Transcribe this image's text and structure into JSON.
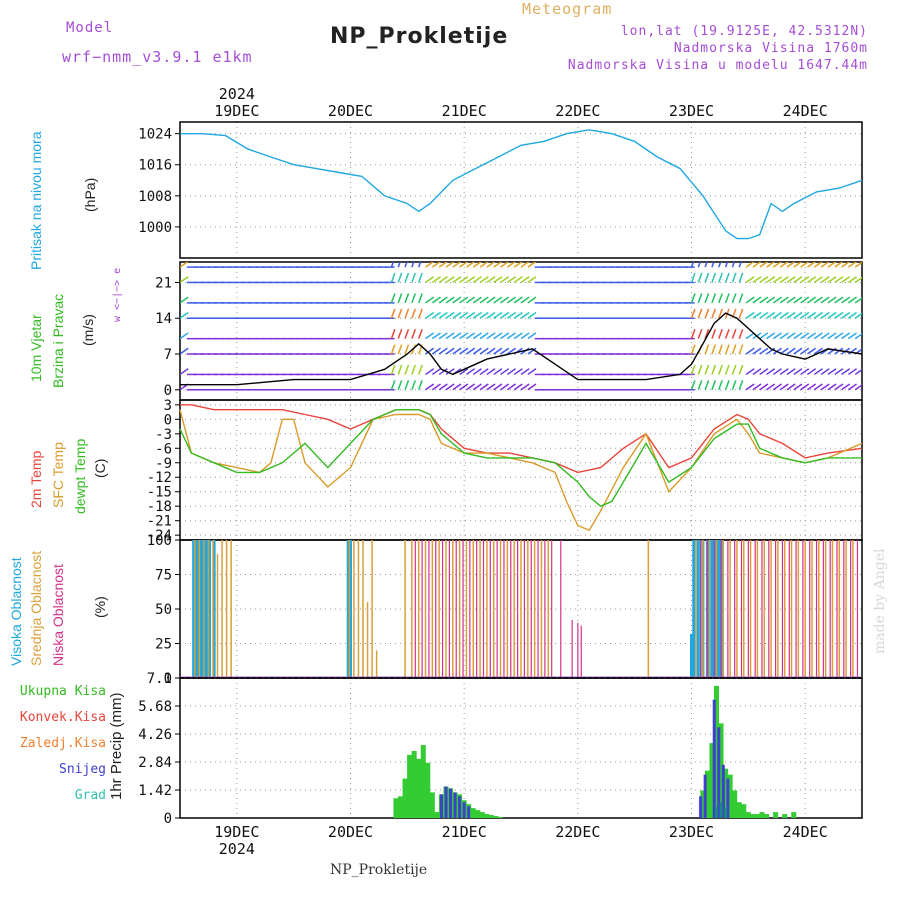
{
  "header": {
    "model_label": "Model",
    "model_name": "wrf−nmm_v3.9.1 e1km",
    "app_title": "Meteogram",
    "station_title": "NP_Prokletije",
    "coords": "lon,lat (19.9125E, 42.5312N)",
    "altitude": "Nadmorska Visina 1760m",
    "model_altitude": "Nadmorska Visina u modelu 1647.44m"
  },
  "footer": {
    "station": "NP_Prokletije",
    "watermark": "made by Angel"
  },
  "time_axis": {
    "year": "2024",
    "days": [
      "19DEC",
      "20DEC",
      "21DEC",
      "22DEC",
      "23DEC",
      "24DEC"
    ]
  },
  "panels": {
    "pressure": {
      "label": "Pritisak na nivou mora",
      "unit": "(hPa)"
    },
    "wind": {
      "label1": "10m Vjetar",
      "label2": "Brzina i Pravac",
      "unit": "(m/s)",
      "compass": "w <−|−> e"
    },
    "temp": {
      "label1": "2m Temp",
      "label2": "SFC Temp",
      "label3": "dewpt Temp",
      "unit": "(C)"
    },
    "cloud": {
      "label1": "Visoka Oblacnost",
      "label2": "Srednja Oblacnost",
      "label3": "Niska Oblacnost",
      "unit": "(%)"
    },
    "precip": {
      "unit": "1hr Precip (mm)",
      "legend": [
        "Ukupna Kisa",
        "Konvek.Kisa",
        "Zaledj.Kisa",
        "Snijeg",
        "Grad"
      ]
    }
  },
  "colors": {
    "pressure": "#1ea7e1",
    "temp2m": "#e8443a",
    "sfc": "#d99b2a",
    "dewpt": "#33bb22",
    "high_cloud": "#1ea7e1",
    "mid_cloud": "#d9a03a",
    "low_cloud": "#d6308a",
    "total_rain": "#33cc33",
    "conv_rain": "#e8443a",
    "freezing": "#f08030",
    "snow": "#4040d0",
    "hail": "#30c0b0",
    "label_purple": "#a64dd6"
  },
  "chart_data": [
    {
      "type": "line",
      "title": "Pritisak na nivou mora",
      "ylabel": "(hPa)",
      "ylim": [
        992,
        1027
      ],
      "yticks": [
        "1024",
        "1016",
        "1008",
        "1000"
      ],
      "x_range_days": [
        18.5,
        24.5
      ],
      "series": [
        {
          "x": [
            18.5,
            18.7,
            18.9,
            19.1,
            19.3,
            19.5,
            19.7,
            19.9,
            20.1,
            20.3,
            20.5,
            20.6,
            20.7,
            20.9,
            21.1,
            21.3,
            21.5,
            21.7,
            21.9,
            22.1,
            22.3,
            22.5,
            22.7,
            22.9,
            23.1,
            23.3,
            23.4,
            23.5,
            23.6,
            23.7,
            23.8,
            23.9,
            24.1,
            24.3,
            24.5
          ],
          "y": [
            1024,
            1024,
            1023.5,
            1020,
            1018,
            1016,
            1015,
            1014,
            1013,
            1008,
            1006,
            1004,
            1006,
            1012,
            1015,
            1018,
            1021,
            1022,
            1024,
            1025,
            1024,
            1022,
            1018,
            1015,
            1008,
            999,
            997,
            997,
            998,
            1006,
            1004,
            1006,
            1009,
            1010,
            1012
          ]
        }
      ]
    },
    {
      "type": "line",
      "title": "10m Vjetar Brzina i Pravac",
      "ylabel": "(m/s)",
      "ylim": [
        -2,
        25
      ],
      "yticks": [
        "21",
        "14",
        "7",
        "0"
      ],
      "x_range_days": [
        18.5,
        24.5
      ],
      "series": [
        {
          "x": [
            18.5,
            19.0,
            19.5,
            20.0,
            20.3,
            20.5,
            20.6,
            20.7,
            20.8,
            20.9,
            21.0,
            21.2,
            21.4,
            21.6,
            21.8,
            22.0,
            22.3,
            22.6,
            22.9,
            23.0,
            23.1,
            23.2,
            23.3,
            23.4,
            23.5,
            23.6,
            23.7,
            23.8,
            24.0,
            24.2,
            24.5
          ],
          "y": [
            1,
            1,
            2,
            2,
            4,
            7,
            9,
            7,
            4,
            3,
            4,
            6,
            7,
            8,
            5,
            2,
            2,
            2,
            3,
            5,
            9,
            13,
            15,
            14,
            12,
            10,
            8,
            7,
            6,
            8,
            7
          ]
        }
      ]
    },
    {
      "type": "line",
      "title": "Temperature",
      "ylabel": "(C)",
      "ylim": [
        -25,
        4
      ],
      "yticks": [
        "3",
        "0",
        "-3",
        "-6",
        "-9",
        "-12",
        "-15",
        "-18",
        "-21",
        "-24"
      ],
      "x_range_days": [
        18.5,
        24.5
      ],
      "series": [
        {
          "name": "2m Temp",
          "x": [
            18.5,
            18.6,
            18.8,
            19.0,
            19.2,
            19.4,
            19.6,
            19.8,
            20.0,
            20.2,
            20.4,
            20.6,
            20.7,
            20.8,
            21.0,
            21.2,
            21.4,
            21.6,
            21.8,
            22.0,
            22.2,
            22.4,
            22.6,
            22.8,
            23.0,
            23.2,
            23.4,
            23.5,
            23.6,
            23.8,
            24.0,
            24.2,
            24.5
          ],
          "y": [
            3,
            3,
            2,
            2,
            2,
            2,
            1,
            0,
            -2,
            0,
            2,
            2,
            1,
            -2,
            -6,
            -7,
            -7,
            -8,
            -9,
            -11,
            -10,
            -6,
            -3,
            -10,
            -8,
            -2,
            1,
            0,
            -3,
            -5,
            -8,
            -7,
            -6
          ]
        },
        {
          "name": "SFC Temp",
          "x": [
            18.5,
            18.6,
            18.8,
            19.0,
            19.2,
            19.3,
            19.4,
            19.5,
            19.6,
            19.8,
            20.0,
            20.2,
            20.4,
            20.6,
            20.7,
            20.8,
            21.0,
            21.2,
            21.4,
            21.6,
            21.8,
            21.9,
            22.0,
            22.1,
            22.2,
            22.4,
            22.6,
            22.8,
            23.0,
            23.2,
            23.4,
            23.5,
            23.6,
            23.8,
            24.0,
            24.2,
            24.5
          ],
          "y": [
            2,
            -7,
            -9,
            -10,
            -11,
            -9,
            0,
            0,
            -9,
            -14,
            -10,
            0,
            1,
            1,
            0,
            -5,
            -7,
            -7,
            -8,
            -9,
            -11,
            -17,
            -22,
            -23,
            -19,
            -10,
            -3,
            -15,
            -10,
            -3,
            0,
            -3,
            -7,
            -8,
            -9,
            -8,
            -5
          ]
        },
        {
          "name": "dewpt Temp",
          "x": [
            18.5,
            18.6,
            18.8,
            19.0,
            19.2,
            19.4,
            19.6,
            19.8,
            20.0,
            20.2,
            20.4,
            20.6,
            20.7,
            20.8,
            21.0,
            21.2,
            21.4,
            21.6,
            21.8,
            22.0,
            22.1,
            22.2,
            22.3,
            22.4,
            22.6,
            22.8,
            23.0,
            23.2,
            23.4,
            23.5,
            23.6,
            23.8,
            24.0,
            24.2,
            24.5
          ],
          "y": [
            -2,
            -7,
            -9,
            -11,
            -11,
            -9,
            -5,
            -10,
            -5,
            0,
            2,
            2,
            1,
            -3,
            -7,
            -8,
            -8,
            -8,
            -9,
            -13,
            -16,
            -18,
            -17,
            -13,
            -5,
            -13,
            -10,
            -4,
            -1,
            -1,
            -6,
            -8,
            -9,
            -8,
            -8
          ]
        }
      ]
    },
    {
      "type": "bar",
      "title": "Oblacnost",
      "ylabel": "(%)",
      "ylim": [
        0,
        100
      ],
      "yticks": [
        "100",
        "75",
        "50",
        "25",
        "0"
      ],
      "x_range_days": [
        18.5,
        24.5
      ],
      "series": [
        {
          "name": "Visoka Oblacnost",
          "x": [
            18.62,
            18.64,
            18.66,
            18.68,
            18.7,
            18.72,
            18.74,
            18.76,
            18.8,
            19.98,
            20.0,
            23.0,
            23.02,
            23.06,
            23.1,
            23.14,
            23.18,
            23.2,
            23.22,
            23.24,
            23.26
          ],
          "values": [
            100,
            100,
            100,
            100,
            100,
            100,
            100,
            100,
            100,
            100,
            100,
            32,
            100,
            100,
            100,
            100,
            100,
            100,
            100,
            100,
            100
          ]
        },
        {
          "name": "Srednja Oblacnost",
          "x": [
            18.63,
            18.67,
            18.71,
            18.75,
            18.79,
            18.83,
            18.87,
            18.91,
            18.95,
            19.99,
            20.03,
            20.07,
            20.11,
            20.15,
            20.19,
            20.23,
            20.48,
            20.54,
            20.6,
            20.66,
            20.72,
            20.78,
            20.84,
            20.9,
            20.96,
            21.02,
            21.08,
            21.14,
            21.2,
            21.26,
            21.32,
            21.38,
            21.44,
            21.5,
            21.56,
            21.62,
            21.68,
            21.74,
            22.62,
            23.04,
            23.1,
            23.16,
            23.22,
            23.28,
            23.34,
            23.4,
            23.46,
            23.52,
            23.58,
            23.64,
            23.7,
            23.76,
            23.82,
            23.88,
            23.94,
            24.0,
            24.06,
            24.12,
            24.18,
            24.24,
            24.3,
            24.36,
            24.42
          ],
          "values": [
            100,
            100,
            100,
            100,
            100,
            90,
            100,
            100,
            100,
            100,
            100,
            100,
            100,
            55,
            100,
            20,
            100,
            100,
            100,
            100,
            100,
            100,
            100,
            100,
            100,
            100,
            100,
            100,
            100,
            100,
            100,
            100,
            100,
            100,
            100,
            100,
            100,
            100,
            100,
            100,
            100,
            100,
            100,
            100,
            100,
            100,
            100,
            100,
            100,
            100,
            100,
            100,
            100,
            100,
            100,
            100,
            100,
            100,
            100,
            100,
            100,
            100,
            100
          ]
        },
        {
          "name": "Niska Oblacnost",
          "x": [
            20.57,
            20.63,
            20.69,
            20.75,
            20.81,
            20.87,
            20.93,
            20.99,
            21.05,
            21.11,
            21.17,
            21.23,
            21.29,
            21.35,
            21.41,
            21.47,
            21.53,
            21.59,
            21.65,
            21.71,
            21.77,
            21.85,
            21.95,
            22.0,
            22.03,
            23.08,
            23.14,
            23.2,
            23.26,
            23.32,
            23.38,
            23.44,
            23.5,
            23.56,
            23.62,
            23.68,
            23.74,
            23.8,
            23.86,
            23.92,
            23.98,
            24.04,
            24.1,
            24.16,
            24.22,
            24.28,
            24.34,
            24.4,
            24.46
          ],
          "values": [
            100,
            100,
            100,
            100,
            100,
            100,
            100,
            100,
            100,
            100,
            100,
            100,
            100,
            100,
            100,
            100,
            100,
            100,
            100,
            100,
            100,
            100,
            42,
            40,
            38,
            100,
            100,
            100,
            100,
            100,
            100,
            100,
            100,
            100,
            100,
            100,
            100,
            100,
            100,
            100,
            100,
            100,
            100,
            100,
            100,
            100,
            100,
            100,
            100
          ]
        }
      ]
    },
    {
      "type": "bar",
      "title": "1hr Precip",
      "ylabel": "1hr Precip (mm)",
      "ylim": [
        0,
        7.1
      ],
      "yticks": [
        "7.1",
        "5.68",
        "4.26",
        "2.84",
        "1.42",
        "0"
      ],
      "x_range_days": [
        18.5,
        24.5
      ],
      "series": [
        {
          "name": "Ukupna Kisa",
          "x": [
            20.4,
            20.44,
            20.48,
            20.52,
            20.56,
            20.6,
            20.64,
            20.68,
            20.72,
            20.76,
            20.8,
            20.84,
            20.88,
            20.92,
            20.96,
            21.0,
            21.04,
            21.08,
            21.12,
            21.16,
            21.2,
            21.24,
            21.28,
            21.32,
            23.1,
            23.14,
            23.18,
            23.22,
            23.26,
            23.3,
            23.34,
            23.38,
            23.42,
            23.46,
            23.5,
            23.54,
            23.58,
            23.62,
            23.66,
            23.74,
            23.82,
            23.9
          ],
          "values": [
            1.0,
            1.1,
            2.0,
            3.2,
            3.4,
            3.0,
            3.7,
            2.8,
            1.3,
            0.3,
            1.2,
            1.6,
            1.5,
            1.3,
            1.2,
            0.9,
            0.7,
            0.5,
            0.4,
            0.3,
            0.2,
            0.15,
            0.1,
            0.05,
            1.4,
            2.4,
            3.8,
            6.7,
            4.8,
            2.5,
            2.2,
            1.4,
            0.8,
            0.7,
            0.3,
            0.2,
            0.2,
            0.3,
            0.2,
            0.3,
            0.2,
            0.3
          ]
        },
        {
          "name": "Snijeg",
          "x": [
            20.8,
            20.84,
            20.88,
            20.92,
            20.96,
            21.0,
            21.04,
            23.08,
            23.12,
            23.2,
            23.24,
            23.28,
            23.32
          ],
          "values": [
            1.2,
            1.6,
            1.5,
            1.3,
            1.1,
            0.8,
            0.6,
            1.1,
            2.2,
            6.0,
            4.6,
            2.7,
            2.0
          ]
        },
        {
          "name": "Grad",
          "x": [
            23.22,
            23.26,
            23.3
          ],
          "values": [
            0.6,
            0.8,
            0.5
          ]
        }
      ]
    }
  ]
}
